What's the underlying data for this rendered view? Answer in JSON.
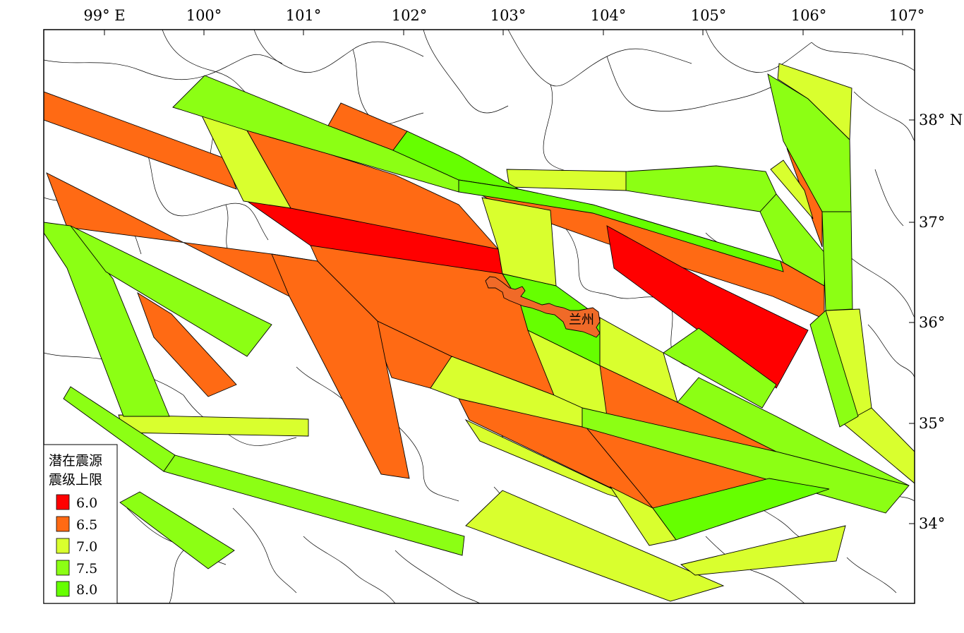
{
  "map": {
    "lon_labels": [
      "99° E",
      "100°",
      "101°",
      "102°",
      "103°",
      "104°",
      "105°",
      "106°",
      "107°"
    ],
    "lat_labels": [
      "38° N",
      "37°",
      "36°",
      "35°",
      "34°"
    ],
    "city": {
      "name": "兰州",
      "color": "#f06a28"
    }
  },
  "legend": {
    "title_line1": "潜在震源",
    "title_line2": "震级上限",
    "items": [
      {
        "label": "6.0",
        "color": "#ff0000"
      },
      {
        "label": "6.5",
        "color": "#ff6a14"
      },
      {
        "label": "7.0",
        "color": "#d9ff2e"
      },
      {
        "label": "7.5",
        "color": "#8cff14"
      },
      {
        "label": "8.0",
        "color": "#66ff00"
      }
    ]
  }
}
